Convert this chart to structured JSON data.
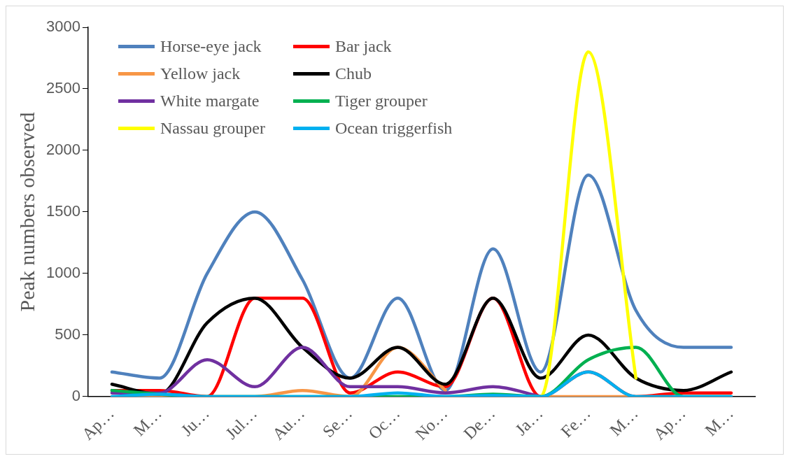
{
  "chart_data": {
    "type": "line",
    "ylabel": "Peak numbers observed",
    "categories": [
      "Ap…",
      "M…",
      "Ju…",
      "Jul…",
      "Au…",
      "Se…",
      "Oc…",
      "No…",
      "De…",
      "Ja…",
      "Fe…",
      "M…",
      "Ap…",
      "M…"
    ],
    "ylim": [
      0,
      3000
    ],
    "yticks": [
      0,
      500,
      1000,
      1500,
      2000,
      2500,
      3000
    ],
    "grid": false,
    "legend": "top left",
    "marker": "none",
    "line_style": "solid",
    "series": [
      {
        "name": "Horse-eye jack",
        "color": "#4f81bd",
        "values": [
          200,
          150,
          1000,
          1500,
          950,
          150,
          800,
          50,
          1200,
          200,
          1800,
          700,
          400,
          400
        ]
      },
      {
        "name": "Bar jack",
        "color": "#ff0000",
        "values": [
          50,
          50,
          0,
          800,
          800,
          30,
          200,
          80,
          800,
          0,
          200,
          0,
          30,
          30
        ]
      },
      {
        "name": "Yellow jack",
        "color": "#f79646",
        "values": [
          0,
          0,
          0,
          0,
          50,
          0,
          400,
          50,
          null,
          0,
          0,
          0,
          0,
          0
        ]
      },
      {
        "name": "Chub",
        "color": "#000000",
        "values": [
          100,
          20,
          600,
          800,
          400,
          150,
          400,
          100,
          800,
          150,
          500,
          150,
          50,
          200
        ]
      },
      {
        "name": "White margate",
        "color": "#7030a0",
        "values": [
          30,
          30,
          300,
          80,
          400,
          80,
          80,
          30,
          80,
          0,
          null,
          null,
          null,
          null
        ]
      },
      {
        "name": "Tiger grouper",
        "color": "#00b050",
        "values": [
          50,
          20,
          0,
          0,
          0,
          0,
          0,
          0,
          20,
          0,
          300,
          400,
          0,
          0
        ]
      },
      {
        "name": "Nassau grouper",
        "color": "#ffff00",
        "values": [
          null,
          null,
          null,
          null,
          null,
          null,
          null,
          null,
          0,
          0,
          2800,
          150,
          null,
          null
        ]
      },
      {
        "name": "Ocean triggerfish",
        "color": "#00b0f0",
        "values": [
          0,
          20,
          0,
          0,
          0,
          0,
          30,
          0,
          10,
          0,
          200,
          0,
          0,
          0
        ]
      }
    ]
  }
}
